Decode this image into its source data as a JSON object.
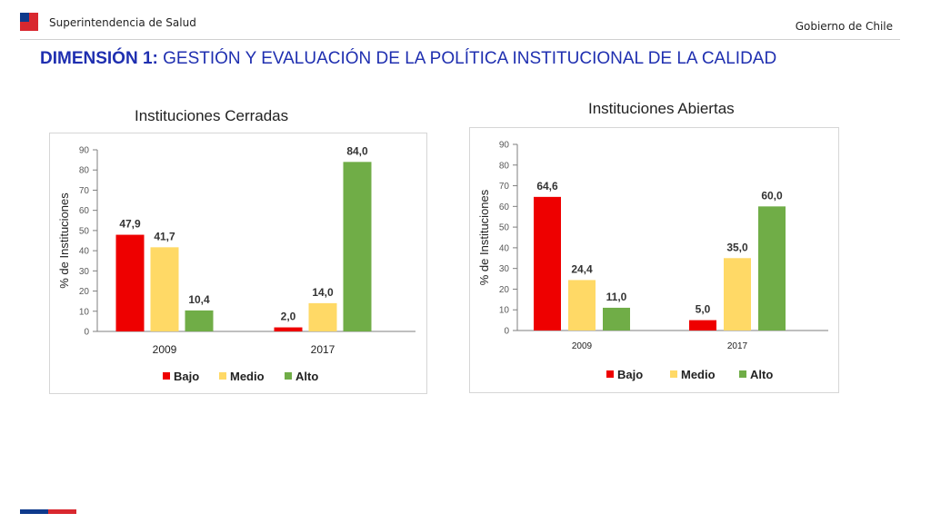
{
  "header": {
    "org_name": "Superintendencia de Salud",
    "gov_name": "Gobierno de Chile"
  },
  "slide": {
    "title_prefix": "DIMENSIÓN 1:",
    "title_rest": " GESTIÓN Y EVALUACIÓN DE LA POLÍTICA INSTITUCIONAL DE LA CALIDAD"
  },
  "colors": {
    "Bajo": "#ee0000",
    "Medio": "#ffd966",
    "Alto": "#70ad47",
    "title": "#1f2fb0"
  },
  "chart_data": [
    {
      "type": "bar",
      "title": "Instituciones Cerradas",
      "ylabel": "% de Instituciones",
      "xlabel": "",
      "ylim": [
        0,
        90
      ],
      "yticks": [
        0,
        10,
        20,
        30,
        40,
        50,
        60,
        70,
        80,
        90
      ],
      "categories": [
        "2009",
        "2017"
      ],
      "series": [
        {
          "name": "Bajo",
          "values": [
            47.9,
            2.0
          ],
          "labels": [
            "47,9",
            "2,0"
          ]
        },
        {
          "name": "Medio",
          "values": [
            41.7,
            14.0
          ],
          "labels": [
            "41,7",
            "14,0"
          ]
        },
        {
          "name": "Alto",
          "values": [
            10.4,
            84.0
          ],
          "labels": [
            "10,4",
            "84,0"
          ]
        }
      ],
      "grid": false,
      "legend": "bottom"
    },
    {
      "type": "bar",
      "title": "Instituciones Abiertas",
      "ylabel": "% de Instituciones",
      "xlabel": "",
      "ylim": [
        0,
        90
      ],
      "yticks": [
        0,
        10,
        20,
        30,
        40,
        50,
        60,
        70,
        80,
        90
      ],
      "categories": [
        "2009",
        "2017"
      ],
      "series": [
        {
          "name": "Bajo",
          "values": [
            64.6,
            5.0
          ],
          "labels": [
            "64,6",
            "5,0"
          ]
        },
        {
          "name": "Medio",
          "values": [
            24.4,
            35.0
          ],
          "labels": [
            "24,4",
            "35,0"
          ]
        },
        {
          "name": "Alto",
          "values": [
            11.0,
            60.0
          ],
          "labels": [
            "11,0",
            "60,0"
          ]
        }
      ],
      "grid": false,
      "legend": "bottom"
    }
  ]
}
